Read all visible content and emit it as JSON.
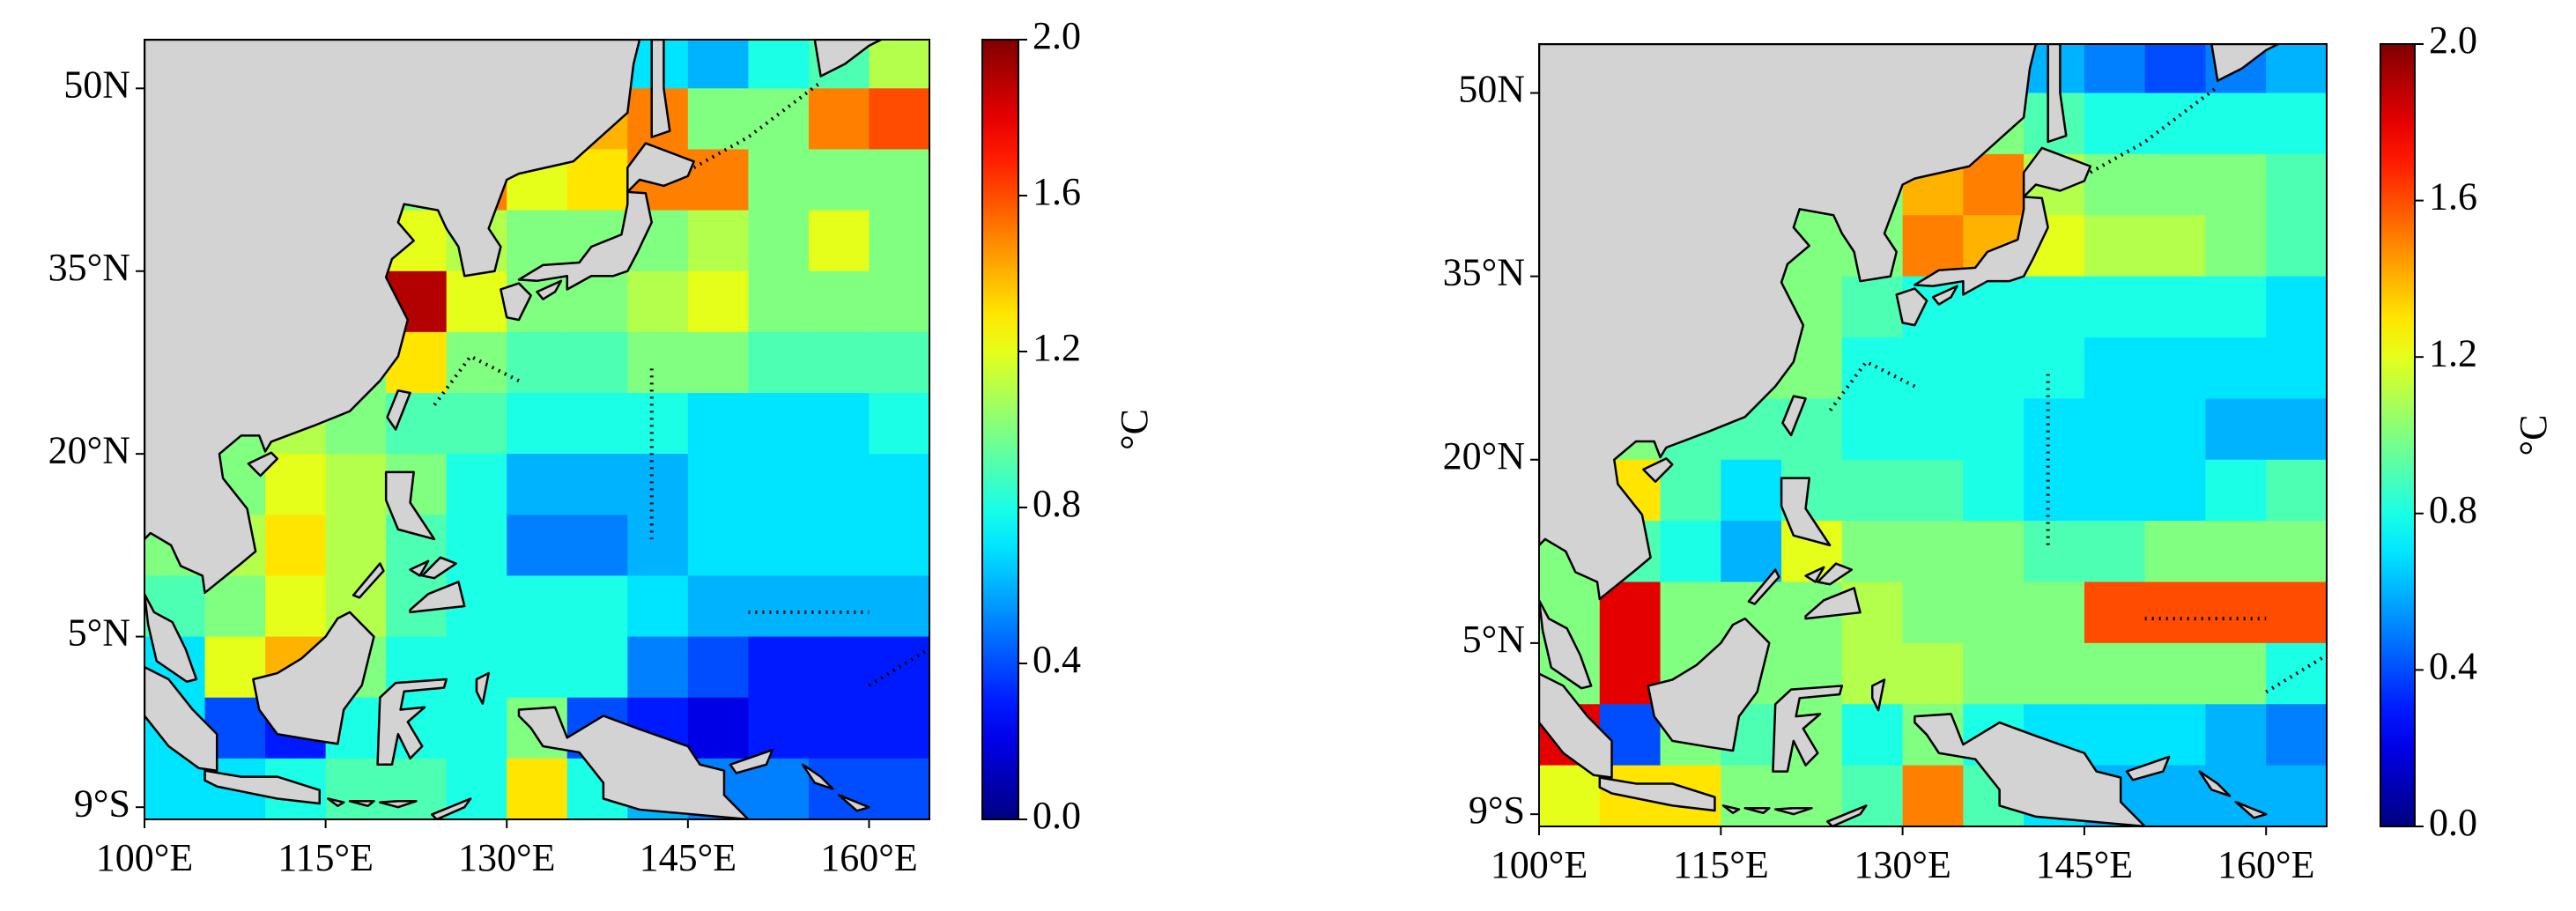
{
  "chart_data": [
    {
      "type": "heatmap",
      "xlim": [
        100,
        165
      ],
      "ylim": [
        -10,
        54
      ],
      "xticks": [
        {
          "value": 100,
          "label": "100°E"
        },
        {
          "value": 115,
          "label": "115°E"
        },
        {
          "value": 130,
          "label": "130°E"
        },
        {
          "value": 145,
          "label": "145°E"
        },
        {
          "value": 160,
          "label": "160°E"
        }
      ],
      "yticks": [
        {
          "value": -9,
          "label": "9°S"
        },
        {
          "value": 5,
          "label": "5°N"
        },
        {
          "value": 20,
          "label": "20°N"
        },
        {
          "value": 35,
          "label": "35°N"
        },
        {
          "value": 50,
          "label": "50N"
        }
      ],
      "lon": [
        100,
        105,
        110,
        115,
        120,
        125,
        130,
        135,
        140,
        145,
        150,
        155,
        160
      ],
      "lat": [
        50,
        45,
        40,
        35,
        30,
        25,
        20,
        15,
        10,
        5,
        0,
        -5,
        -10
      ],
      "values": [
        [
          1.0,
          1.0,
          1.0,
          1.0,
          1.0,
          1.0,
          1.0,
          0.9,
          0.7,
          0.6,
          0.8,
          0.9,
          1.1
        ],
        [
          1.0,
          1.0,
          1.0,
          1.0,
          1.0,
          1.0,
          1.2,
          1.4,
          1.5,
          1.0,
          1.0,
          1.5,
          1.6
        ],
        [
          1.0,
          1.0,
          1.0,
          1.0,
          1.0,
          1.5,
          1.2,
          1.3,
          1.5,
          1.5,
          1.0,
          1.0,
          1.0
        ],
        [
          1.0,
          1.0,
          1.0,
          1.0,
          1.2,
          1.1,
          1.0,
          1.0,
          1.0,
          1.1,
          1.0,
          1.2,
          1.0
        ],
        [
          1.0,
          1.0,
          1.0,
          1.0,
          1.9,
          1.2,
          1.0,
          1.0,
          1.1,
          1.2,
          1.0,
          1.0,
          1.0
        ],
        [
          1.0,
          1.0,
          1.0,
          1.0,
          1.3,
          1.0,
          0.9,
          0.9,
          1.0,
          1.0,
          0.9,
          0.9,
          0.9
        ],
        [
          1.0,
          1.0,
          1.1,
          1.0,
          0.9,
          0.9,
          0.8,
          0.8,
          0.8,
          0.7,
          0.7,
          0.7,
          0.8
        ],
        [
          1.0,
          1.0,
          1.2,
          1.1,
          1.0,
          0.8,
          0.6,
          0.6,
          0.6,
          0.7,
          0.7,
          0.7,
          0.7
        ],
        [
          1.0,
          1.1,
          1.3,
          1.1,
          0.9,
          0.8,
          0.5,
          0.5,
          0.6,
          0.7,
          0.7,
          0.7,
          0.7
        ],
        [
          0.9,
          1.0,
          1.2,
          1.1,
          0.9,
          0.8,
          0.8,
          0.8,
          0.7,
          0.6,
          0.6,
          0.6,
          0.6
        ],
        [
          0.7,
          1.2,
          1.4,
          1.0,
          0.8,
          0.8,
          0.8,
          0.8,
          0.5,
          0.4,
          0.3,
          0.3,
          0.3
        ],
        [
          0.7,
          0.4,
          0.3,
          0.8,
          0.8,
          0.8,
          1.0,
          0.4,
          0.3,
          0.2,
          0.3,
          0.3,
          0.3
        ],
        [
          0.7,
          0.7,
          0.8,
          0.9,
          0.9,
          0.8,
          1.3,
          0.8,
          0.6,
          0.5,
          0.5,
          0.4,
          0.4
        ]
      ],
      "clim": [
        0,
        2
      ],
      "cticks": [
        {
          "value": 0,
          "label": "0.0"
        },
        0.4,
        0.8,
        1.2,
        1.6,
        {
          "value": 2,
          "label": "2.0"
        }
      ],
      "colorbar_label": "°C"
    },
    {
      "type": "heatmap",
      "xlim": [
        100,
        165
      ],
      "ylim": [
        -10,
        54
      ],
      "xticks": [
        {
          "value": 100,
          "label": "100°E"
        },
        {
          "value": 115,
          "label": "115°E"
        },
        {
          "value": 130,
          "label": "130°E"
        },
        {
          "value": 145,
          "label": "145°E"
        },
        {
          "value": 160,
          "label": "160°E"
        }
      ],
      "yticks": [
        {
          "value": -9,
          "label": "9°S"
        },
        {
          "value": 5,
          "label": "5°N"
        },
        {
          "value": 20,
          "label": "20°N"
        },
        {
          "value": 35,
          "label": "35°N"
        },
        {
          "value": 50,
          "label": "50N"
        }
      ],
      "lon": [
        100,
        105,
        110,
        115,
        120,
        125,
        130,
        135,
        140,
        145,
        150,
        155,
        160
      ],
      "lat": [
        50,
        45,
        40,
        35,
        30,
        25,
        20,
        15,
        10,
        5,
        0,
        -5,
        -10
      ],
      "values": [
        [
          1.0,
          1.0,
          1.0,
          1.0,
          1.0,
          1.0,
          1.0,
          1.0,
          0.6,
          0.5,
          0.4,
          0.5,
          0.6
        ],
        [
          1.0,
          1.0,
          1.0,
          1.0,
          1.0,
          1.0,
          1.0,
          1.0,
          0.9,
          0.8,
          0.8,
          0.8,
          0.8
        ],
        [
          1.0,
          1.0,
          1.0,
          1.0,
          1.0,
          1.0,
          1.4,
          1.5,
          1.1,
          1.0,
          1.0,
          1.0,
          0.9
        ],
        [
          1.0,
          1.0,
          1.0,
          1.0,
          1.0,
          1.0,
          1.5,
          1.4,
          1.2,
          1.1,
          1.1,
          1.0,
          0.9
        ],
        [
          1.0,
          1.0,
          1.0,
          1.0,
          1.0,
          0.9,
          0.8,
          0.8,
          0.8,
          0.8,
          0.8,
          0.8,
          0.7
        ],
        [
          1.0,
          1.0,
          1.0,
          1.0,
          1.0,
          0.8,
          0.8,
          0.8,
          0.8,
          0.7,
          0.7,
          0.7,
          0.7
        ],
        [
          1.0,
          1.0,
          0.9,
          0.9,
          0.9,
          0.8,
          0.8,
          0.8,
          0.7,
          0.7,
          0.7,
          0.6,
          0.6
        ],
        [
          1.0,
          1.3,
          0.9,
          0.7,
          0.9,
          0.9,
          0.9,
          0.8,
          0.7,
          0.7,
          0.7,
          0.8,
          0.9
        ],
        [
          1.0,
          0.9,
          0.8,
          0.6,
          1.2,
          1.0,
          1.0,
          1.0,
          0.9,
          0.9,
          1.0,
          1.0,
          1.0
        ],
        [
          1.0,
          1.8,
          1.0,
          1.0,
          1.0,
          1.1,
          1.0,
          1.0,
          1.0,
          1.6,
          1.6,
          1.6,
          1.6
        ],
        [
          1.0,
          1.8,
          1.0,
          1.0,
          1.0,
          1.1,
          1.1,
          1.0,
          1.0,
          1.0,
          1.0,
          1.0,
          0.8
        ],
        [
          1.8,
          0.4,
          1.0,
          0.9,
          1.0,
          0.8,
          1.0,
          0.8,
          0.7,
          0.7,
          0.7,
          0.6,
          0.5
        ],
        [
          1.2,
          1.3,
          1.3,
          1.0,
          1.0,
          0.9,
          1.5,
          0.9,
          0.7,
          0.6,
          0.6,
          0.6,
          0.6
        ]
      ],
      "clim": [
        0,
        2
      ],
      "cticks": [
        {
          "value": 0,
          "label": "0.0"
        },
        0.4,
        0.8,
        1.2,
        1.6,
        {
          "value": 2,
          "label": "2.0"
        }
      ],
      "colorbar_label": "°C"
    }
  ]
}
